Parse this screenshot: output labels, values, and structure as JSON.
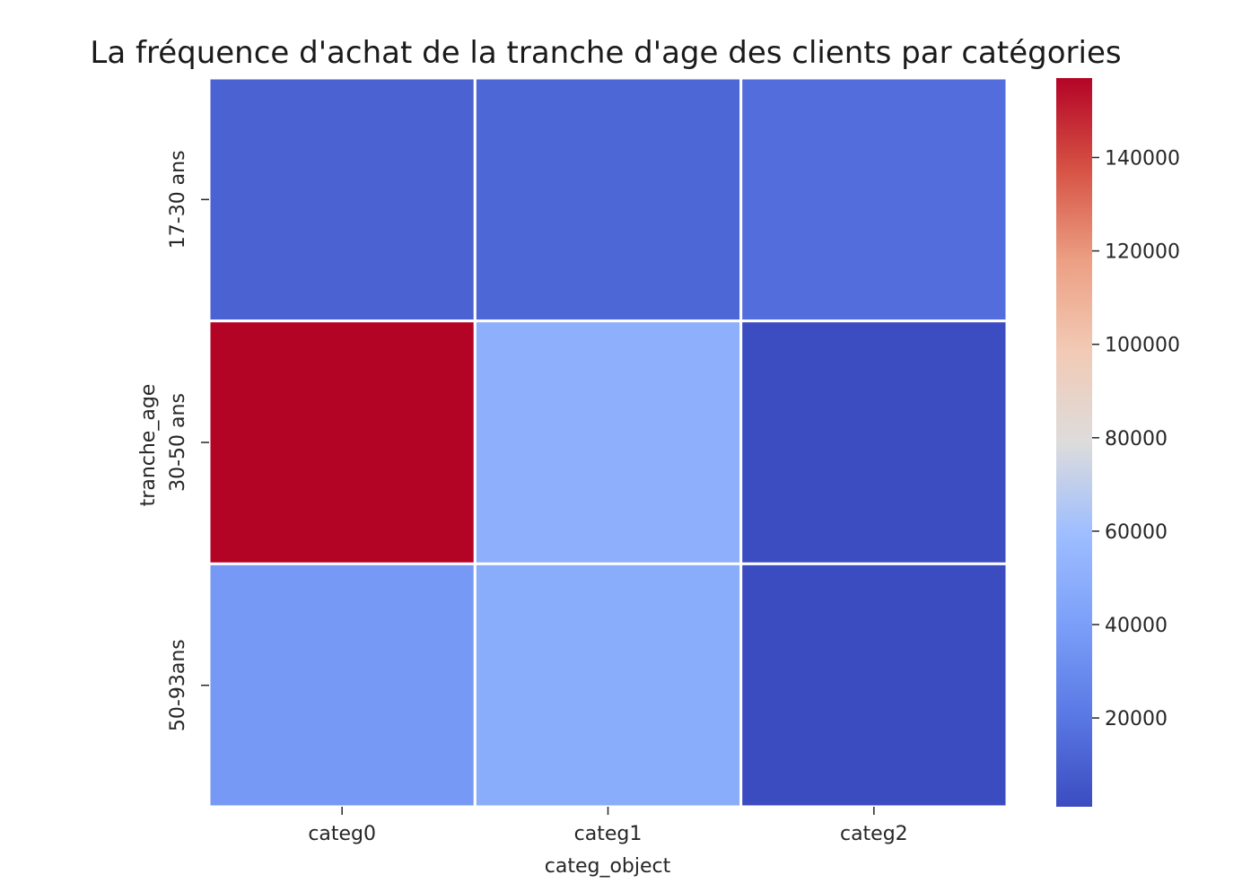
{
  "chart_data": {
    "type": "heatmap",
    "title": "La fréquence d'achat de la tranche d'age des clients par catégories",
    "xlabel": "categ_object",
    "ylabel": "tranche_age",
    "x_categories": [
      "categ0",
      "categ1",
      "categ2"
    ],
    "y_categories": [
      "17-30 ans",
      "30-50 ans",
      "50-93ans"
    ],
    "values": [
      [
        11000,
        13000,
        16000
      ],
      [
        157000,
        50000,
        1500
      ],
      [
        37000,
        48000,
        1000
      ]
    ],
    "colorbar": {
      "min": 1000,
      "max": 157000,
      "ticks": [
        20000,
        40000,
        60000,
        80000,
        100000,
        120000,
        140000
      ],
      "tick_labels": [
        "20000",
        "40000",
        "60000",
        "80000",
        "100000",
        "120000",
        "140000"
      ],
      "colormap": "coolwarm"
    }
  }
}
